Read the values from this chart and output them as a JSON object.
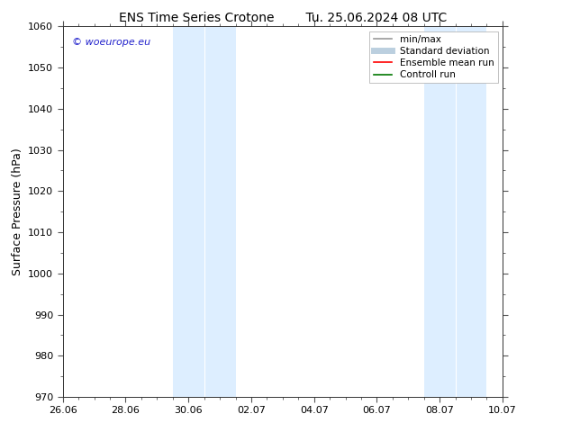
{
  "title_left": "ENS Time Series Crotone",
  "title_right": "Tu. 25.06.2024 08 UTC",
  "ylabel": "Surface Pressure (hPa)",
  "ylim": [
    970,
    1060
  ],
  "yticks": [
    970,
    980,
    990,
    1000,
    1010,
    1020,
    1030,
    1040,
    1050,
    1060
  ],
  "xmin": 0,
  "xmax": 14,
  "xtick_positions": [
    0,
    2,
    4,
    6,
    8,
    10,
    12,
    14
  ],
  "xtick_labels": [
    "26.06",
    "28.06",
    "30.06",
    "02.07",
    "04.07",
    "06.07",
    "08.07",
    "10.07"
  ],
  "shaded_bands": [
    {
      "xmin": 3.5,
      "xmax": 4.5
    },
    {
      "xmin": 4.5,
      "xmax": 5.5
    },
    {
      "xmin": 11.5,
      "xmax": 12.5
    },
    {
      "xmin": 12.5,
      "xmax": 13.5
    }
  ],
  "shade_color": "#ddeeff",
  "shade_color2": "#cce0f5",
  "watermark_text": "© woeurope.eu",
  "watermark_color": "#2222cc",
  "legend_items": [
    {
      "label": "min/max",
      "color": "#999999",
      "lw": 1.2
    },
    {
      "label": "Standard deviation",
      "color": "#bbcfdf",
      "lw": 5
    },
    {
      "label": "Ensemble mean run",
      "color": "#ff0000",
      "lw": 1.2
    },
    {
      "label": "Controll run",
      "color": "#007700",
      "lw": 1.2
    }
  ],
  "background_color": "#ffffff",
  "title_fontsize": 10,
  "tick_fontsize": 8,
  "ylabel_fontsize": 9,
  "legend_fontsize": 7.5
}
